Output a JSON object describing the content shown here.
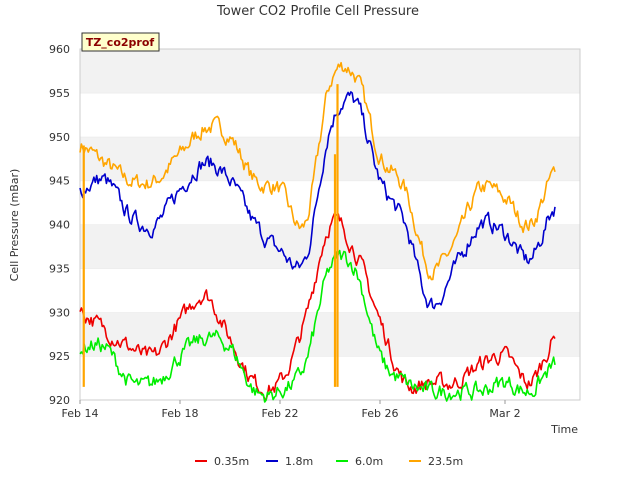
{
  "chart_data": {
    "type": "line",
    "title": "Tower CO2 Profile Cell Pressure",
    "badge": "TZ_co2prof",
    "xlabel": "Time",
    "ylabel": "Cell Pressure (mBar)",
    "ylim": [
      920,
      960
    ],
    "yticks": [
      920,
      925,
      930,
      935,
      940,
      945,
      950,
      955,
      960
    ],
    "xlim": [
      "2024-02-14",
      "2024-03-05"
    ],
    "xticks": [
      {
        "label": "Feb 14",
        "date": "2024-02-14"
      },
      {
        "label": "Feb 18",
        "date": "2024-02-18"
      },
      {
        "label": "Feb 22",
        "date": "2024-02-22"
      },
      {
        "label": "Feb 26",
        "date": "2024-02-26"
      },
      {
        "label": "Mar 2",
        "date": "2024-03-02"
      }
    ],
    "grid": "horizontal bands",
    "legend_position": "bottom",
    "x": [
      "2024-02-14",
      "2024-02-15",
      "2024-02-16",
      "2024-02-17",
      "2024-02-18",
      "2024-02-19",
      "2024-02-20",
      "2024-02-21",
      "2024-02-22",
      "2024-02-23",
      "2024-02-24",
      "2024-02-25",
      "2024-02-26",
      "2024-02-27",
      "2024-02-28",
      "2024-02-29",
      "2024-03-01",
      "2024-03-02",
      "2024-03-03",
      "2024-03-04"
    ],
    "series": [
      {
        "name": "0.35m",
        "color": "#ee0000",
        "values": [
          930,
          928,
          926,
          925,
          929,
          932,
          927,
          922,
          922,
          929,
          940,
          937,
          929,
          922,
          922,
          922,
          924,
          925,
          922,
          927
        ]
      },
      {
        "name": "1.8m",
        "color": "#0000cc",
        "values": [
          944,
          945,
          941,
          940,
          944,
          947,
          945,
          940,
          937,
          936,
          951,
          954,
          945,
          940,
          931,
          935,
          940,
          939,
          936,
          942
        ]
      },
      {
        "name": "6.0m",
        "color": "#00ee00",
        "values": [
          926,
          926,
          922,
          922,
          925,
          927,
          926,
          921,
          921,
          924,
          935,
          935,
          925,
          922,
          921,
          921,
          921,
          922,
          921,
          924
        ]
      },
      {
        "name": "23.5m",
        "color": "#ffa500",
        "values": [
          949,
          947,
          945,
          945,
          948,
          951,
          950,
          945,
          944,
          940,
          956,
          957,
          948,
          944,
          935,
          938,
          944,
          943,
          940,
          946
        ]
      }
    ]
  }
}
